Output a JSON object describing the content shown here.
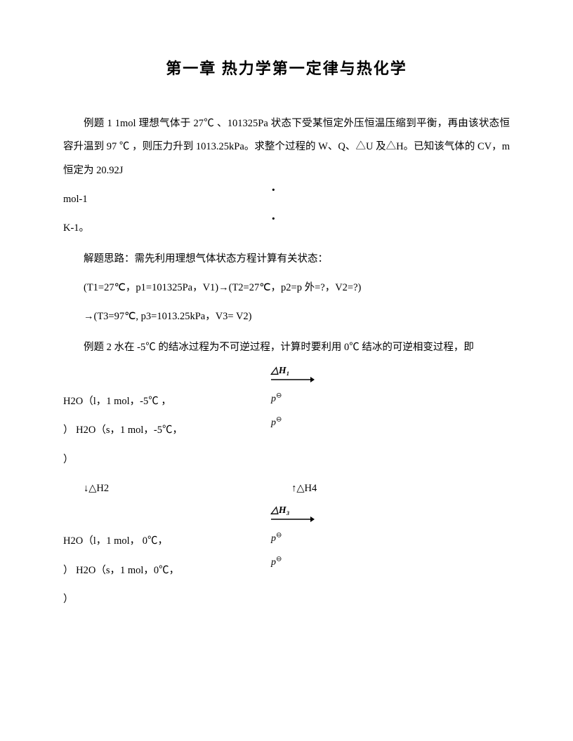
{
  "title": "第一章    热力学第一定律与热化学",
  "ex1": {
    "p1": "例题 1 1mol 理想气体于 27℃ 、101325Pa 状态下受某恒定外压恒温压缩到平衡，再由该状态恒容升温到 97 ℃ ，则压力升到 1013.25kPa。求整个过程的 W、Q、△U 及△H。已知该气体的 CV，m 恒定为 20.92J",
    "p2": "mol-1",
    "p3": "K-1。",
    "think": "解题思路：需先利用理想气体状态方程计算有关状态：",
    "state1": "(T1=27℃，p1=101325Pa，V1)→(T2=27℃，p2=p 外=?，V2=?)",
    "state2": "→(T3=97℃,    p3=1013.25kPa，V3= V2)"
  },
  "ex2": {
    "intro": "例题 2 水在 -5℃ 的结冰过程为不可逆过程，计算时要利用 0℃ 结冰的可逆相变过程，即",
    "dh1_label": "△H₁",
    "row1a": "H2O（l，1 mol，-5℃ ，",
    "row1b": "）              H2O（s，1 mol，-5℃，",
    "row1c": "）",
    "dh2": "↓△H2",
    "dh4": "↑△H4",
    "dh3_label": "△H₃",
    "row2a": "H2O（l，1 mol，  0℃，",
    "row2b": "）                H2O（s，1 mol，0℃，",
    "row2c": "）",
    "p_theta": "p<sup>⊖</sup>"
  },
  "colors": {
    "bg": "#ffffff",
    "text": "#000000"
  }
}
